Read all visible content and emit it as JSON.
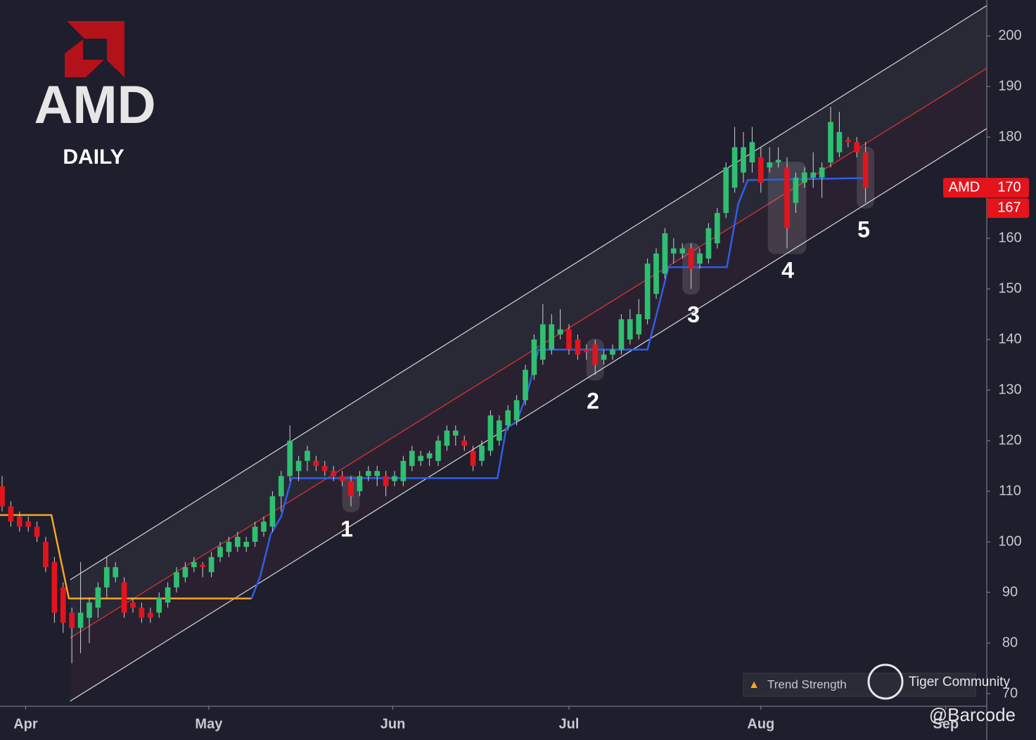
{
  "chart_data": {
    "type": "candlestick",
    "logo": {
      "text": "AMD",
      "subtitle": "DAILY"
    },
    "xlim": [
      -0.24,
      112.9
    ],
    "xticks": [
      {
        "value": 2.7,
        "label": "Apr"
      },
      {
        "value": 23.7,
        "label": "May"
      },
      {
        "value": 44.8,
        "label": "Jun"
      },
      {
        "value": 65,
        "label": "Jul"
      },
      {
        "value": 87,
        "label": "Aug"
      },
      {
        "value": 108.2,
        "label": "Sep"
      }
    ],
    "ylim": [
      67.5,
      207.1
    ],
    "yticks": [
      70,
      80,
      90,
      100,
      110,
      120,
      130,
      140,
      150,
      160,
      170,
      180,
      190,
      200
    ],
    "up_color": "#2fbf71",
    "down_color": "#e3141c",
    "ohlc": [
      [
        111,
        113,
        106,
        107
      ],
      [
        107,
        108,
        103,
        104
      ],
      [
        105,
        106,
        102,
        103
      ],
      [
        104,
        105,
        102,
        103
      ],
      [
        103,
        104,
        100,
        101
      ],
      [
        100,
        101,
        94,
        95
      ],
      [
        96,
        97,
        84,
        86
      ],
      [
        91,
        92,
        82,
        84
      ],
      [
        86,
        87,
        76,
        83
      ],
      [
        83,
        96,
        78,
        86
      ],
      [
        85,
        89,
        80,
        88
      ],
      [
        87,
        92,
        85,
        91
      ],
      [
        91,
        97,
        89,
        95
      ],
      [
        93,
        96,
        92,
        95
      ],
      [
        92,
        93,
        85,
        86
      ],
      [
        88,
        89,
        86,
        87
      ],
      [
        87,
        88,
        84,
        85
      ],
      [
        86,
        87,
        84,
        85
      ],
      [
        86,
        90,
        85,
        89
      ],
      [
        88,
        92,
        87,
        91
      ],
      [
        91,
        95,
        90,
        94
      ],
      [
        93,
        96,
        92,
        95
      ],
      [
        95,
        97,
        94,
        96
      ],
      [
        95.5,
        96,
        93,
        95
      ],
      [
        94,
        98,
        93,
        97
      ],
      [
        97,
        100,
        96,
        99
      ],
      [
        98,
        101,
        97,
        100
      ],
      [
        99,
        102,
        98,
        101
      ],
      [
        99,
        101,
        98,
        100
      ],
      [
        100,
        104,
        99,
        103
      ],
      [
        102,
        105,
        101,
        104
      ],
      [
        103,
        110,
        102,
        109
      ],
      [
        109,
        114,
        106,
        113
      ],
      [
        113,
        123,
        112,
        120
      ],
      [
        114,
        117,
        112,
        116
      ],
      [
        116,
        119,
        114,
        118
      ],
      [
        116,
        117,
        114,
        115
      ],
      [
        115,
        116,
        113,
        114
      ],
      [
        114,
        115,
        112,
        113
      ],
      [
        113,
        114,
        111,
        112
      ],
      [
        112,
        113,
        107,
        109
      ],
      [
        110,
        114,
        109,
        113
      ],
      [
        113,
        115,
        112,
        114
      ],
      [
        113,
        115,
        111,
        114
      ],
      [
        113,
        114,
        109,
        111
      ],
      [
        112,
        114,
        111,
        113
      ],
      [
        112,
        117,
        111,
        116
      ],
      [
        115,
        119,
        114,
        118
      ],
      [
        116,
        118,
        115,
        117
      ],
      [
        116.5,
        118,
        115,
        117.5
      ],
      [
        116,
        121,
        115,
        120
      ],
      [
        119,
        123,
        118,
        122
      ],
      [
        121,
        123,
        119,
        122
      ],
      [
        120,
        121,
        118,
        119
      ],
      [
        118,
        119,
        114,
        115
      ],
      [
        116,
        120,
        115,
        119
      ],
      [
        118,
        126,
        117,
        125
      ],
      [
        120,
        125,
        119,
        124
      ],
      [
        123,
        127,
        122,
        126
      ],
      [
        124,
        129,
        123,
        128
      ],
      [
        128,
        135,
        127,
        134
      ],
      [
        133,
        141,
        132,
        140
      ],
      [
        136,
        147,
        135,
        143
      ],
      [
        138,
        145,
        137,
        143
      ],
      [
        141,
        146,
        140,
        142
      ],
      [
        142,
        143,
        137,
        138
      ],
      [
        140,
        141,
        136,
        137
      ],
      [
        138,
        139,
        136,
        137.5
      ],
      [
        139,
        140,
        133,
        135
      ],
      [
        136,
        138,
        135,
        137
      ],
      [
        137,
        139,
        136,
        138
      ],
      [
        138,
        145,
        137,
        144
      ],
      [
        140,
        146,
        139,
        144
      ],
      [
        141,
        148,
        140,
        145
      ],
      [
        144,
        156,
        143,
        155
      ],
      [
        149,
        158,
        148,
        157
      ],
      [
        153,
        162,
        152,
        161
      ],
      [
        157,
        160,
        155,
        158
      ],
      [
        157,
        159,
        156,
        158
      ],
      [
        158,
        159,
        150,
        154
      ],
      [
        155,
        158,
        154,
        157
      ],
      [
        156,
        163,
        155,
        162
      ],
      [
        159,
        166,
        158,
        165
      ],
      [
        165,
        175,
        164,
        174
      ],
      [
        170,
        182,
        169,
        178
      ],
      [
        173,
        181,
        171,
        178
      ],
      [
        175,
        182,
        173,
        179
      ],
      [
        176,
        178,
        169,
        171
      ],
      [
        174,
        178,
        173,
        175
      ],
      [
        175,
        178,
        174,
        175.5
      ],
      [
        174,
        176,
        158,
        162
      ],
      [
        167,
        173,
        165,
        172
      ],
      [
        171,
        174,
        170,
        173
      ],
      [
        172,
        177,
        170,
        173
      ],
      [
        172,
        175,
        168,
        174
      ],
      [
        175,
        186,
        174,
        183
      ],
      [
        177,
        185,
        176,
        181
      ],
      [
        179.5,
        180,
        178,
        179
      ],
      [
        179,
        180,
        176,
        177
      ],
      [
        177,
        179,
        167,
        170
      ]
    ],
    "channel": {
      "x": [
        7.8,
        112.9
      ],
      "upper": [
        92.5,
        206
      ],
      "middle": [
        81,
        193.6
      ],
      "lower": [
        68.5,
        181.7
      ]
    },
    "trail_down": {
      "color": "#f5a623",
      "x": [
        -0.24,
        5.65,
        7.66,
        28.6
      ],
      "values": [
        105.3,
        105.3,
        88.8,
        88.8
      ]
    },
    "trail_up": {
      "color": "#2f5ee8",
      "x": [
        28.6,
        29.6,
        30.8,
        32.0,
        33.2,
        56.8,
        57.8,
        59.0,
        60.2,
        61.5,
        74,
        75.2,
        76.4,
        83.1,
        84.4,
        85.5,
        98.8
      ],
      "values": [
        88.8,
        93.2,
        101.5,
        105,
        112.6,
        112.6,
        122.4,
        123.8,
        129.3,
        138,
        138,
        146,
        154.3,
        154.3,
        166.8,
        171.5,
        171.9
      ]
    },
    "annotations": [
      "1",
      "2",
      "3",
      "4",
      "5"
    ],
    "price_tags": [
      {
        "label": "AMD",
        "value": 170
      },
      {
        "value": 167
      }
    ],
    "footer": {
      "indicator": "Trend Strength",
      "community": "Tiger Community",
      "handle": "@Barcode"
    }
  }
}
